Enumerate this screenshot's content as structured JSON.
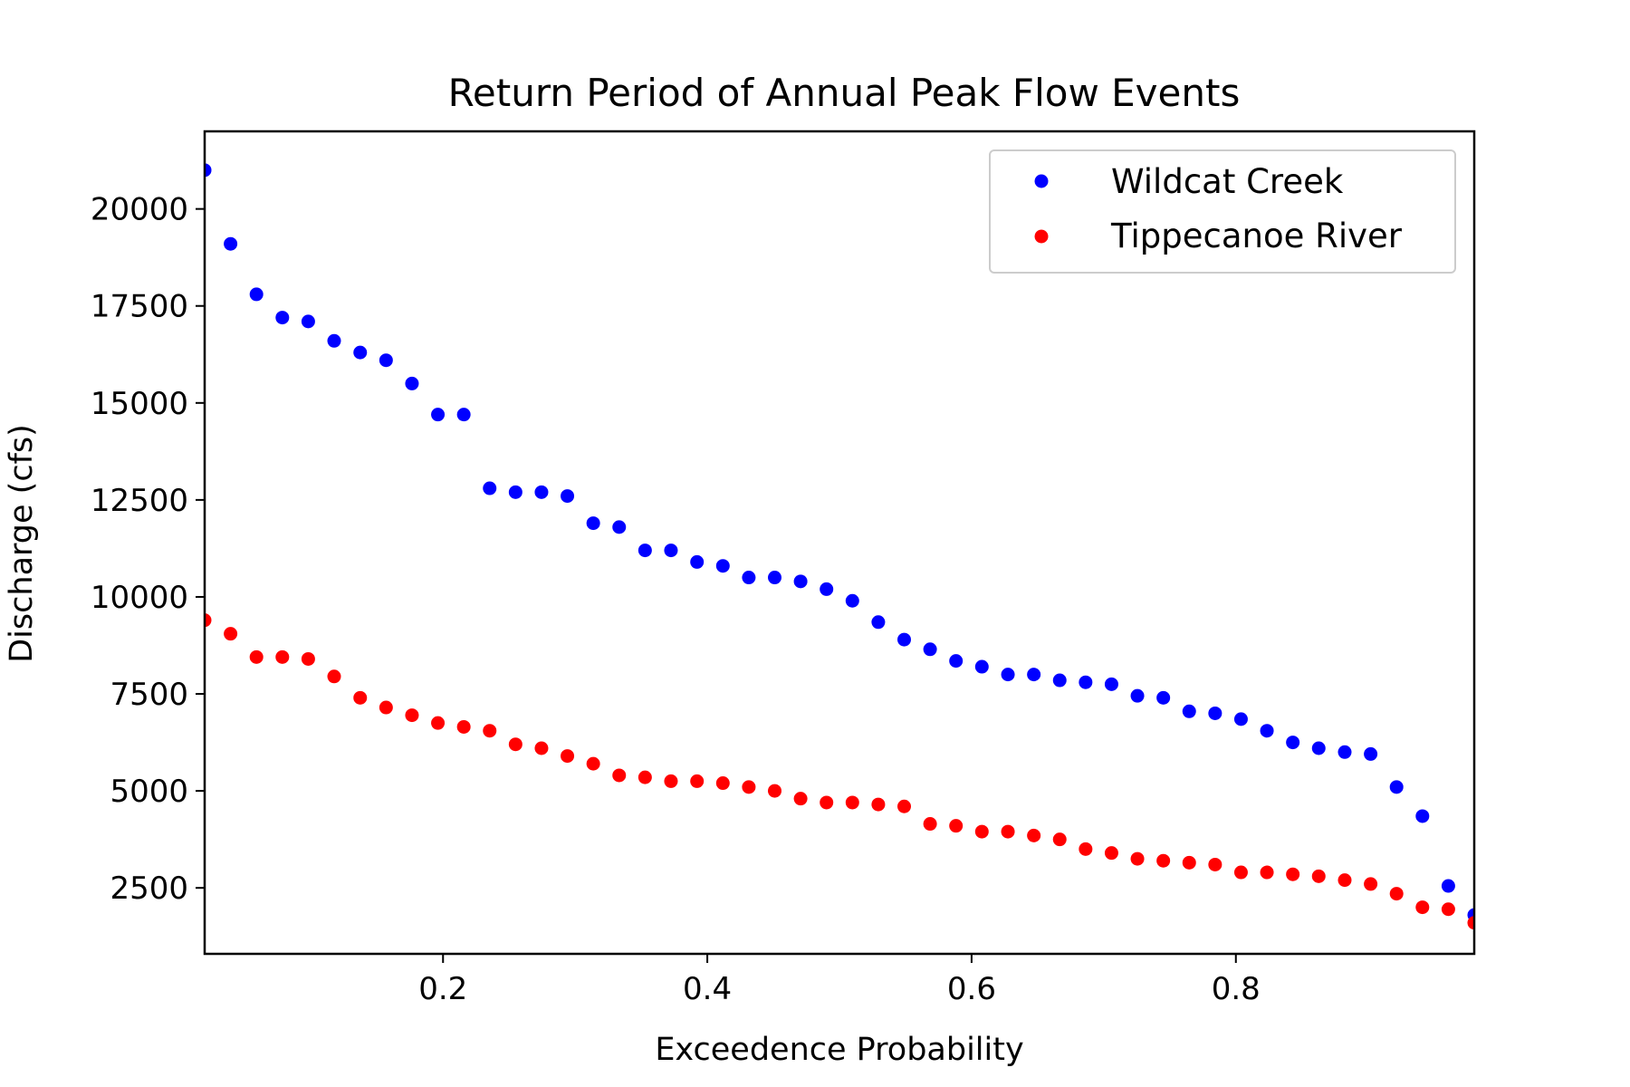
{
  "chart_data": {
    "type": "scatter",
    "title": "Return Period of Annual Peak Flow Events",
    "xlabel": "Exceedence Probability",
    "ylabel": "Discharge (cfs)",
    "xlim": [
      0.0196,
      0.9804
    ],
    "ylim": [
      800,
      22000
    ],
    "x_ticks": [
      0.2,
      0.4,
      0.6,
      0.8
    ],
    "x_tick_labels": [
      "0.2",
      "0.4",
      "0.6",
      "0.8"
    ],
    "y_ticks": [
      2500,
      5000,
      7500,
      10000,
      12500,
      15000,
      17500,
      20000
    ],
    "y_tick_labels": [
      "2500",
      "5000",
      "7500",
      "10000",
      "12500",
      "15000",
      "17500",
      "20000"
    ],
    "grid": false,
    "legend_position": "top-right",
    "series": [
      {
        "name": "Wildcat Creek",
        "color": "#0000ff",
        "x": [
          0.0196,
          0.0392,
          0.0588,
          0.0784,
          0.098,
          0.1176,
          0.1373,
          0.1569,
          0.1765,
          0.1961,
          0.2157,
          0.2353,
          0.2549,
          0.2745,
          0.2941,
          0.3137,
          0.3333,
          0.3529,
          0.3725,
          0.3922,
          0.4118,
          0.4314,
          0.451,
          0.4706,
          0.4902,
          0.5098,
          0.5294,
          0.549,
          0.5686,
          0.5882,
          0.6078,
          0.6275,
          0.6471,
          0.6667,
          0.6863,
          0.7059,
          0.7255,
          0.7451,
          0.7647,
          0.7843,
          0.8039,
          0.8235,
          0.8431,
          0.8627,
          0.8824,
          0.902,
          0.9216,
          0.9412,
          0.9608,
          0.9804
        ],
        "y": [
          21000,
          19100,
          17800,
          17200,
          17100,
          16600,
          16300,
          16100,
          15500,
          14700,
          14700,
          12800,
          12700,
          12700,
          12600,
          11900,
          11800,
          11200,
          11200,
          10900,
          10800,
          10500,
          10500,
          10400,
          10200,
          9900,
          9350,
          8900,
          8650,
          8350,
          8200,
          8000,
          8000,
          7850,
          7800,
          7750,
          7450,
          7400,
          7050,
          7000,
          6850,
          6550,
          6250,
          6100,
          6000,
          5950,
          5100,
          4350,
          2550,
          1800
        ]
      },
      {
        "name": "Tippecanoe River",
        "color": "#ff0000",
        "x": [
          0.0196,
          0.0392,
          0.0588,
          0.0784,
          0.098,
          0.1176,
          0.1373,
          0.1569,
          0.1765,
          0.1961,
          0.2157,
          0.2353,
          0.2549,
          0.2745,
          0.2941,
          0.3137,
          0.3333,
          0.3529,
          0.3725,
          0.3922,
          0.4118,
          0.4314,
          0.451,
          0.4706,
          0.4902,
          0.5098,
          0.5294,
          0.549,
          0.5686,
          0.5882,
          0.6078,
          0.6275,
          0.6471,
          0.6667,
          0.6863,
          0.7059,
          0.7255,
          0.7451,
          0.7647,
          0.7843,
          0.8039,
          0.8235,
          0.8431,
          0.8627,
          0.8824,
          0.902,
          0.9216,
          0.9412,
          0.9608,
          0.9804
        ],
        "y": [
          9400,
          9050,
          8450,
          8450,
          8400,
          7950,
          7400,
          7150,
          6950,
          6750,
          6650,
          6550,
          6200,
          6100,
          5900,
          5700,
          5400,
          5350,
          5250,
          5250,
          5200,
          5100,
          5000,
          4800,
          4700,
          4700,
          4650,
          4600,
          4150,
          4100,
          3950,
          3950,
          3850,
          3750,
          3500,
          3400,
          3250,
          3200,
          3150,
          3100,
          2900,
          2900,
          2850,
          2800,
          2700,
          2600,
          2350,
          2000,
          1950,
          1600
        ]
      }
    ]
  }
}
